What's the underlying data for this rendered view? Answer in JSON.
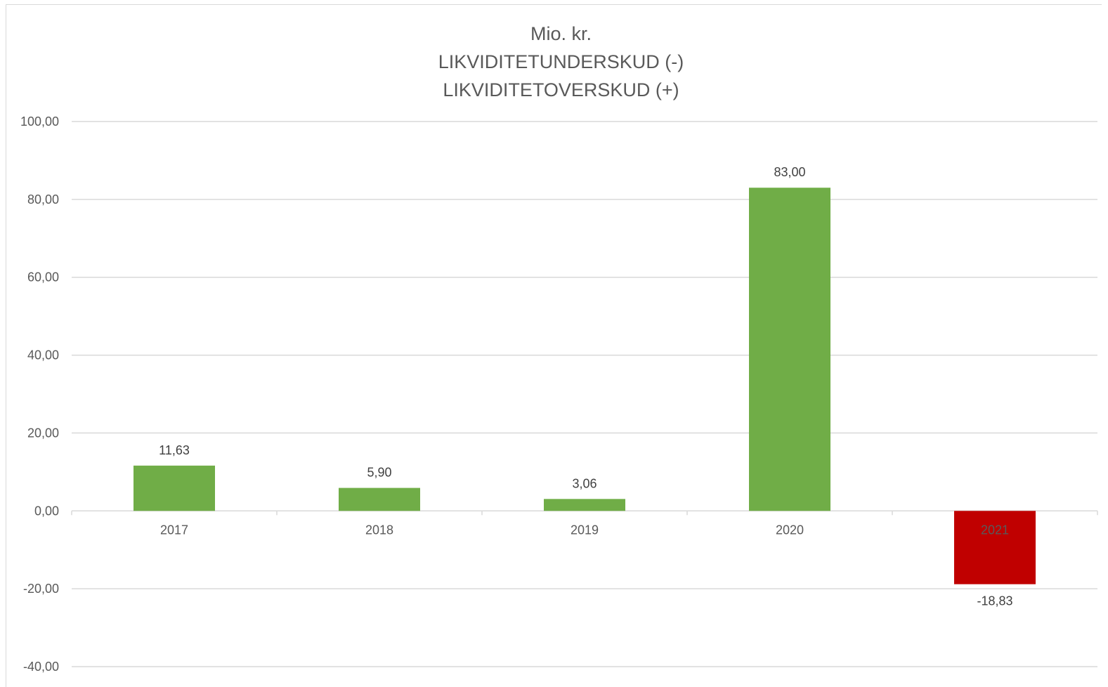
{
  "chart_data": {
    "type": "bar",
    "title_lines": [
      "Mio. kr.",
      "LIKVIDITETUNDERSKUD (-)",
      "LIKVIDITETOVERSKUD (+)"
    ],
    "categories": [
      "2017",
      "2018",
      "2019",
      "2020",
      "2021"
    ],
    "values": [
      11.63,
      5.9,
      3.06,
      83.0,
      -18.83
    ],
    "data_labels": [
      "11,63",
      "5,90",
      "3,06",
      "83,00",
      "-18,83"
    ],
    "y_ticks": [
      "100,00",
      "80,00",
      "60,00",
      "40,00",
      "20,00",
      "0,00",
      "-20,00",
      "-40,00"
    ],
    "ylim": [
      -40,
      100
    ],
    "grid": true,
    "legend": "none",
    "colors": {
      "positive": "#70ad47",
      "negative": "#c00000",
      "grid": "#d9d9d9",
      "text": "#595959"
    }
  }
}
